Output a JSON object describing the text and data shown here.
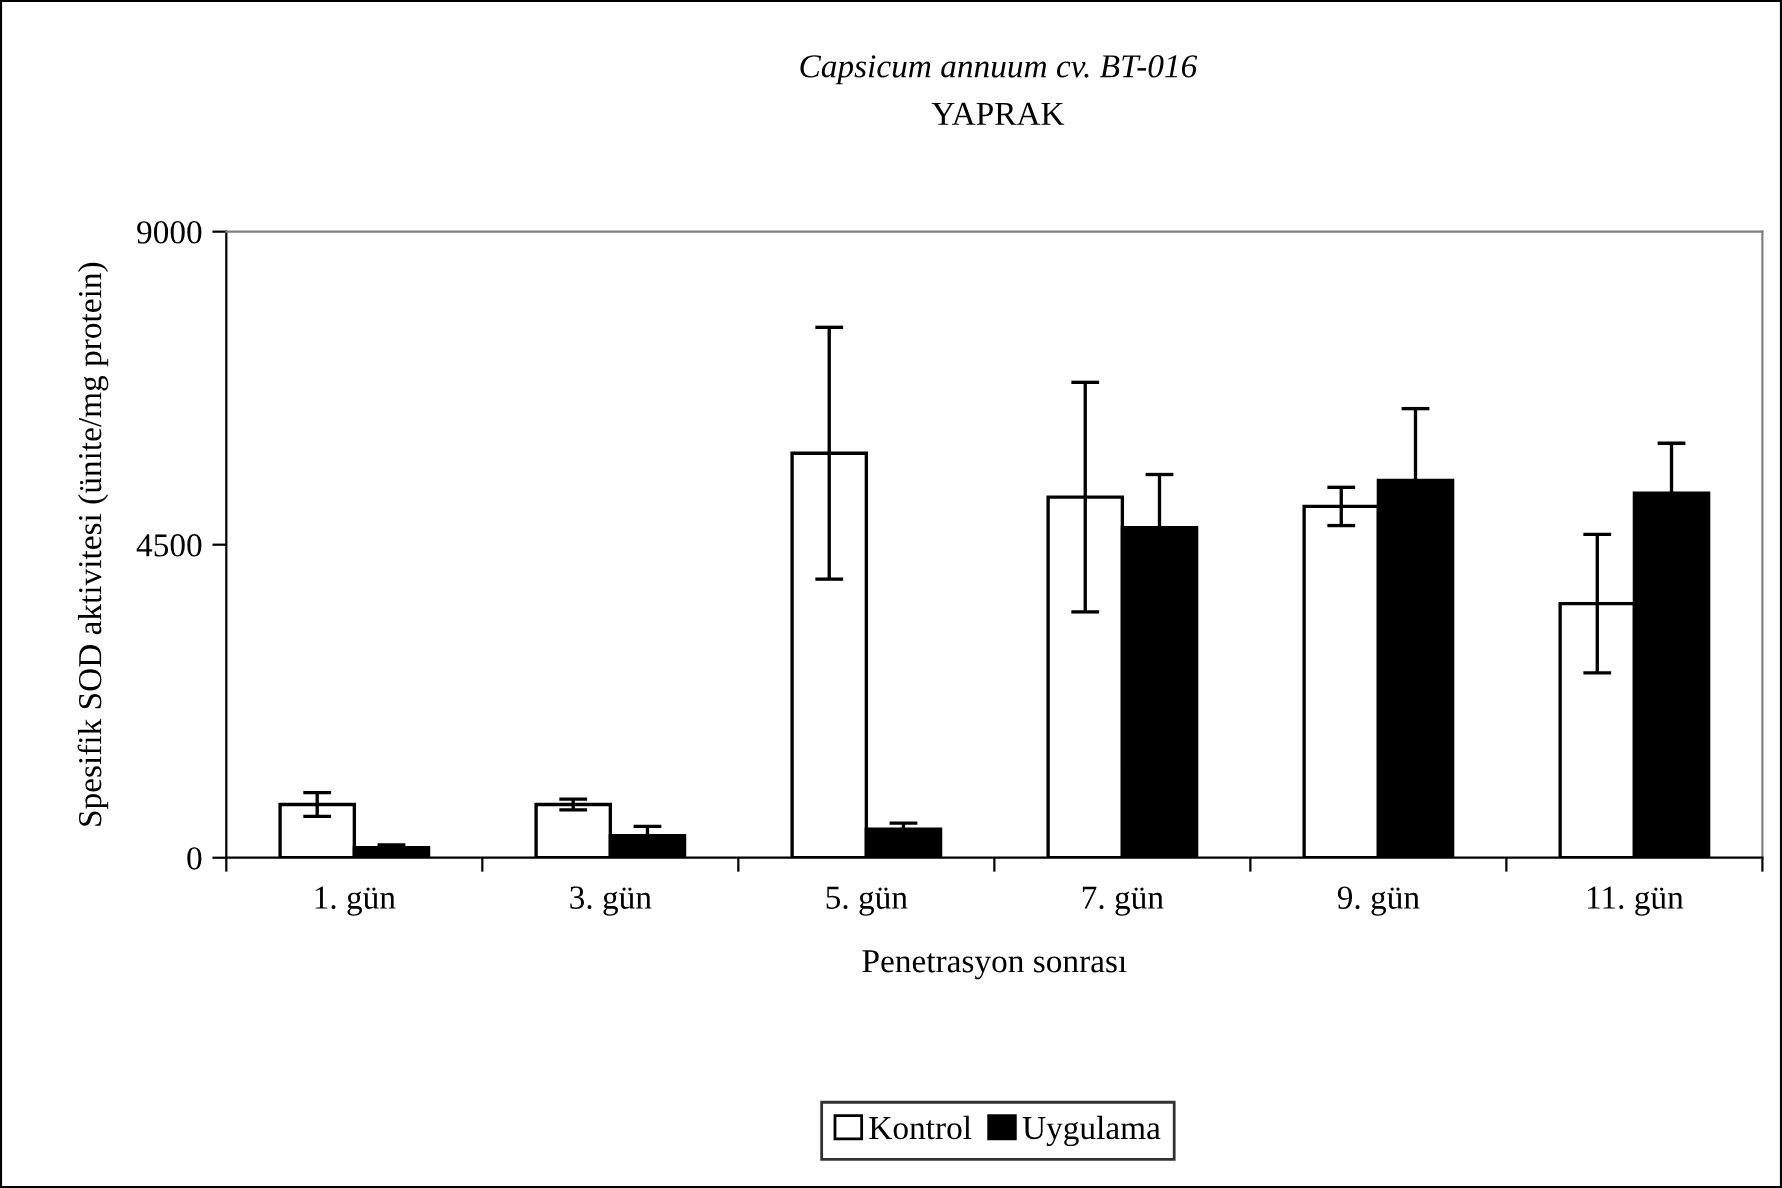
{
  "chart_data": {
    "type": "bar",
    "title": "Capsicum annuum cv. BT-016",
    "subtitle": "YAPRAK",
    "xlabel": "Penetrasyon sonrası",
    "ylabel": "Spesifik SOD aktivitesi (ünite/mg protein)",
    "categories": [
      "1. gün",
      "3. gün",
      "5. gün",
      "7. gün",
      "9. gün",
      "11. gün"
    ],
    "series": [
      {
        "name": "Kontrol",
        "color": "#ffffff",
        "values": [
          765,
          765,
          5815,
          5184,
          5050,
          3653
        ],
        "errors": [
          170,
          77,
          1810,
          1650,
          275,
          995
        ]
      },
      {
        "name": "Uygulama",
        "color": "#000000",
        "values": [
          143,
          316,
          411,
          4744,
          5423,
          5241
        ],
        "errors": [
          40,
          134,
          86,
          765,
          1033,
          717
        ]
      }
    ],
    "ylim": [
      0,
      9000
    ],
    "yticks": [
      0,
      4500,
      9000
    ],
    "grid": false,
    "legend": "bottom"
  }
}
